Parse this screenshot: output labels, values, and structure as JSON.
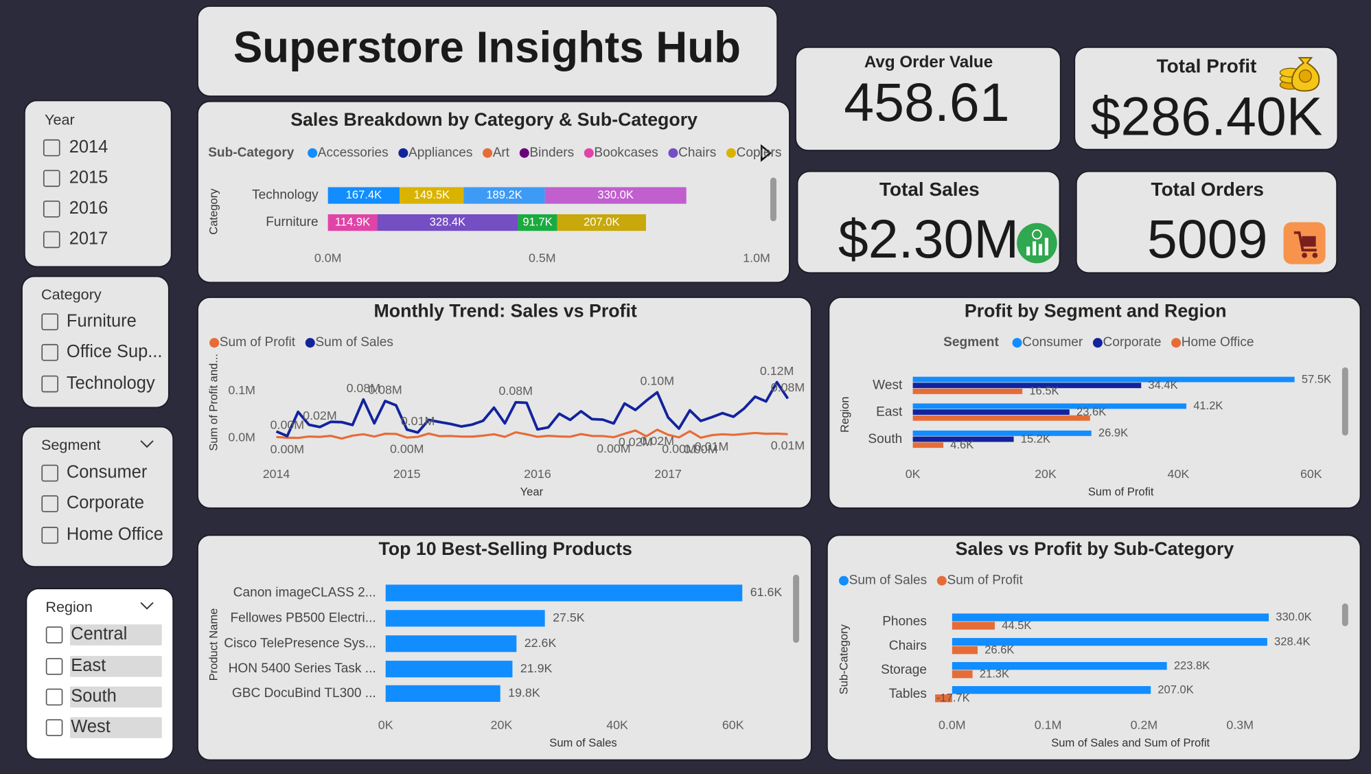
{
  "title": "Superstore Insights Hub",
  "slicers": [
    {
      "title": "Year",
      "items": [
        "2014",
        "2015",
        "2016",
        "2017"
      ]
    },
    {
      "title": "Category",
      "items": [
        "Furniture",
        "Office Sup...",
        "Technology"
      ]
    },
    {
      "title": "Segment",
      "items": [
        "Consumer",
        "Corporate",
        "Home Office"
      ]
    },
    {
      "title": "Region",
      "items": [
        "Central",
        "East",
        "South",
        "West"
      ]
    }
  ],
  "kpis": [
    {
      "label": "Avg Order Value",
      "value": "458.61"
    },
    {
      "label": "Total Profit",
      "value": "$286.40K"
    },
    {
      "label": "Total Sales",
      "value": "$2.30M"
    },
    {
      "label": "Total Orders",
      "value": "5009"
    }
  ],
  "chart_data": [
    {
      "type": "stacked_bar_h",
      "title": "Sales Breakdown by Category & Sub-Category",
      "legend_title": "Sub-Category",
      "y_label": "Category",
      "categories": [
        "Technology",
        "Furniture"
      ],
      "series": [
        {
          "name": "Accessories",
          "color": "#118DFF",
          "values": [
            167400,
            null
          ],
          "value_labels": [
            "167.4K",
            null
          ]
        },
        {
          "name": "Appliances",
          "color": "#12239E",
          "values": [
            null,
            null
          ]
        },
        {
          "name": "Art",
          "color": "#E66C37",
          "values": [
            null,
            null
          ]
        },
        {
          "name": "Binders",
          "color": "#6B007B",
          "values": [
            null,
            null
          ]
        },
        {
          "name": "Bookcases",
          "color": "#E044A7",
          "values": [
            null,
            114900
          ],
          "value_labels": [
            null,
            "114.9K"
          ]
        },
        {
          "name": "Chairs",
          "color": "#744EC2",
          "values": [
            null,
            328400
          ],
          "value_labels": [
            null,
            "328.4K"
          ]
        },
        {
          "name": "Copiers",
          "color": "#D9B300",
          "values": [
            149500,
            null
          ],
          "value_labels": [
            "149.5K",
            null
          ]
        },
        {
          "color": "#1AAB40",
          "values": [
            null,
            91700
          ],
          "value_labels": [
            null,
            "91.7K"
          ]
        },
        {
          "color": "#3E9BF5",
          "values": [
            189200,
            null
          ],
          "value_labels": [
            "189.2K",
            null
          ]
        },
        {
          "color": "#C15FCF",
          "values": [
            330000,
            null
          ],
          "value_labels": [
            "330.0K",
            null
          ]
        },
        {
          "color": "#C8A80B",
          "values": [
            null,
            207000
          ],
          "value_labels": [
            null,
            "207.0K"
          ]
        }
      ],
      "xlim": [
        0,
        1030000
      ],
      "xticks": [
        {
          "value": 0,
          "label": "0.0M"
        },
        {
          "value": 500000,
          "label": "0.5M"
        },
        {
          "value": 1000000,
          "label": "1.0M"
        }
      ]
    },
    {
      "type": "line",
      "title": "Monthly Trend: Sales vs Profit",
      "x_label": "Year",
      "y_label": "Sum of Profit and...",
      "categories": [
        "2014",
        null,
        null,
        null,
        null,
        null,
        null,
        null,
        null,
        null,
        null,
        null,
        "2015",
        null,
        null,
        null,
        null,
        null,
        null,
        null,
        null,
        null,
        null,
        null,
        "2016",
        null,
        null,
        null,
        null,
        null,
        null,
        null,
        null,
        null,
        null,
        null,
        "2017",
        null,
        null,
        null,
        null,
        null,
        null,
        null,
        null,
        null,
        null,
        null
      ],
      "series": [
        {
          "name": "Sum of Profit",
          "color": "#E66C37",
          "values": [
            2450,
            862,
            498,
            3489,
            2739,
            4977,
            -841,
            5318,
            8329,
            3448,
            9292,
            8983,
            1200,
            2814,
            9732,
            4187,
            4668,
            3335,
            3288,
            5356,
            8210,
            2817,
            12474,
            8016,
            2825,
            5004,
            3612,
            2977,
            8662,
            4750,
            4433,
            2063,
            9328,
            16243,
            4011,
            17885,
            7140,
            1613,
            14752,
            933,
            6342,
            8223,
            6952,
            9041,
            10991,
            9275,
            9690,
            8483
          ],
          "value_labels": [
            null,
            "0.00M",
            null,
            null,
            null,
            null,
            null,
            null,
            null,
            null,
            null,
            null,
            "0.00M",
            null,
            null,
            null,
            null,
            null,
            null,
            null,
            null,
            null,
            null,
            null,
            null,
            null,
            null,
            null,
            null,
            null,
            null,
            "0.00M",
            null,
            "0.02M",
            null,
            "0.02M",
            null,
            "0.00M",
            null,
            "0.00M",
            "0.01M",
            null,
            null,
            null,
            null,
            null,
            null,
            "0.01M"
          ]
        },
        {
          "name": "Sum of Sales",
          "color": "#12239E",
          "values": [
            14237,
            4520,
            55691,
            28295,
            23648,
            34595,
            33946,
            27909,
            81777,
            31453,
            78629,
            69546,
            18174,
            11951,
            38726,
            34195,
            30132,
            24797,
            28765,
            36898,
            64596,
            31405,
            75973,
            74920,
            18542,
            22979,
            51716,
            38750,
            56988,
            40345,
            39262,
            31115,
            73410,
            59688,
            79412,
            96999,
            43971,
            20301,
            58872,
            36522,
            44261,
            52982,
            45264,
            63121,
            87867,
            77777,
            118448,
            83829
          ],
          "value_labels": [
            null,
            "0.00M",
            null,
            null,
            "0.02M",
            null,
            null,
            null,
            "0.08M",
            null,
            "0.08M",
            null,
            null,
            "0.01M",
            null,
            null,
            null,
            null,
            null,
            null,
            null,
            null,
            "0.08M",
            null,
            null,
            null,
            null,
            null,
            null,
            null,
            null,
            null,
            null,
            null,
            null,
            "0.10M",
            null,
            null,
            null,
            null,
            null,
            null,
            null,
            null,
            null,
            null,
            "0.12M",
            "0.08M"
          ]
        }
      ],
      "ylim": [
        -40000,
        160000
      ],
      "yticks": [
        {
          "value": 0,
          "label": "0.0M"
        },
        {
          "value": 100000,
          "label": "0.1M"
        }
      ]
    },
    {
      "type": "grouped_bar_h",
      "title": "Profit by Segment and Region",
      "legend_title": "Segment",
      "x_label": "Sum of Profit",
      "y_label": "Region",
      "categories": [
        "West",
        "East",
        "South"
      ],
      "series": [
        {
          "name": "Consumer",
          "color": "#118DFF",
          "values": [
            57500,
            41200,
            26900
          ],
          "value_labels": [
            "57.5K",
            "41.2K",
            "26.9K"
          ]
        },
        {
          "name": "Corporate",
          "color": "#12239E",
          "values": [
            34400,
            23600,
            15200
          ],
          "value_labels": [
            "34.4K",
            "23.6K",
            "15.2K"
          ]
        },
        {
          "name": "Home Office",
          "color": "#E66C37",
          "values": [
            16500,
            26700,
            4600
          ],
          "value_labels": [
            "16.5K",
            null,
            "4.6K"
          ]
        }
      ],
      "xlim": [
        0,
        64000
      ],
      "xticks": [
        {
          "value": 0,
          "label": "0K"
        },
        {
          "value": 20000,
          "label": "20K"
        },
        {
          "value": 40000,
          "label": "40K"
        },
        {
          "value": 60000,
          "label": "60K"
        }
      ]
    },
    {
      "type": "bar_h",
      "title": "Top 10 Best-Selling Products",
      "x_label": "Sum of Sales",
      "y_label": "Product Name",
      "categories": [
        "Canon imageCLASS 2...",
        "Fellowes PB500 Electri...",
        "Cisco TelePresence Sys...",
        "HON 5400 Series Task ...",
        "GBC DocuBind TL300 ..."
      ],
      "values": [
        61600,
        27500,
        22600,
        21900,
        19800
      ],
      "value_labels": [
        "61.6K",
        "27.5K",
        "22.6K",
        "21.9K",
        "19.8K"
      ],
      "color": "#118DFF",
      "xlim": [
        0,
        69000
      ],
      "xticks": [
        {
          "value": 0,
          "label": "0K"
        },
        {
          "value": 20000,
          "label": "20K"
        },
        {
          "value": 40000,
          "label": "40K"
        },
        {
          "value": 60000,
          "label": "60K"
        }
      ]
    },
    {
      "type": "grouped_bar_h",
      "title": "Sales vs Profit by Sub-Category",
      "x_label": "Sum of Sales and Sum of Profit",
      "y_label": "Sub-Category",
      "categories": [
        "Phones",
        "Chairs",
        "Storage",
        "Tables"
      ],
      "series": [
        {
          "name": "Sum of Sales",
          "color": "#118DFF",
          "values": [
            330000,
            328400,
            223800,
            207000
          ],
          "value_labels": [
            "330.0K",
            "328.4K",
            "223.8K",
            "207.0K"
          ]
        },
        {
          "name": "Sum of Profit",
          "color": "#E66C37",
          "values": [
            44500,
            26600,
            21300,
            -17700
          ],
          "value_labels": [
            "44.5K",
            "26.6K",
            "21.3K",
            "-17.7K"
          ]
        }
      ],
      "xlim": [
        -20000,
        400000
      ],
      "xticks": [
        {
          "value": 0,
          "label": "0.0M"
        },
        {
          "value": 100000,
          "label": "0.1M"
        },
        {
          "value": 200000,
          "label": "0.2M"
        },
        {
          "value": 300000,
          "label": "0.3M"
        }
      ]
    }
  ]
}
